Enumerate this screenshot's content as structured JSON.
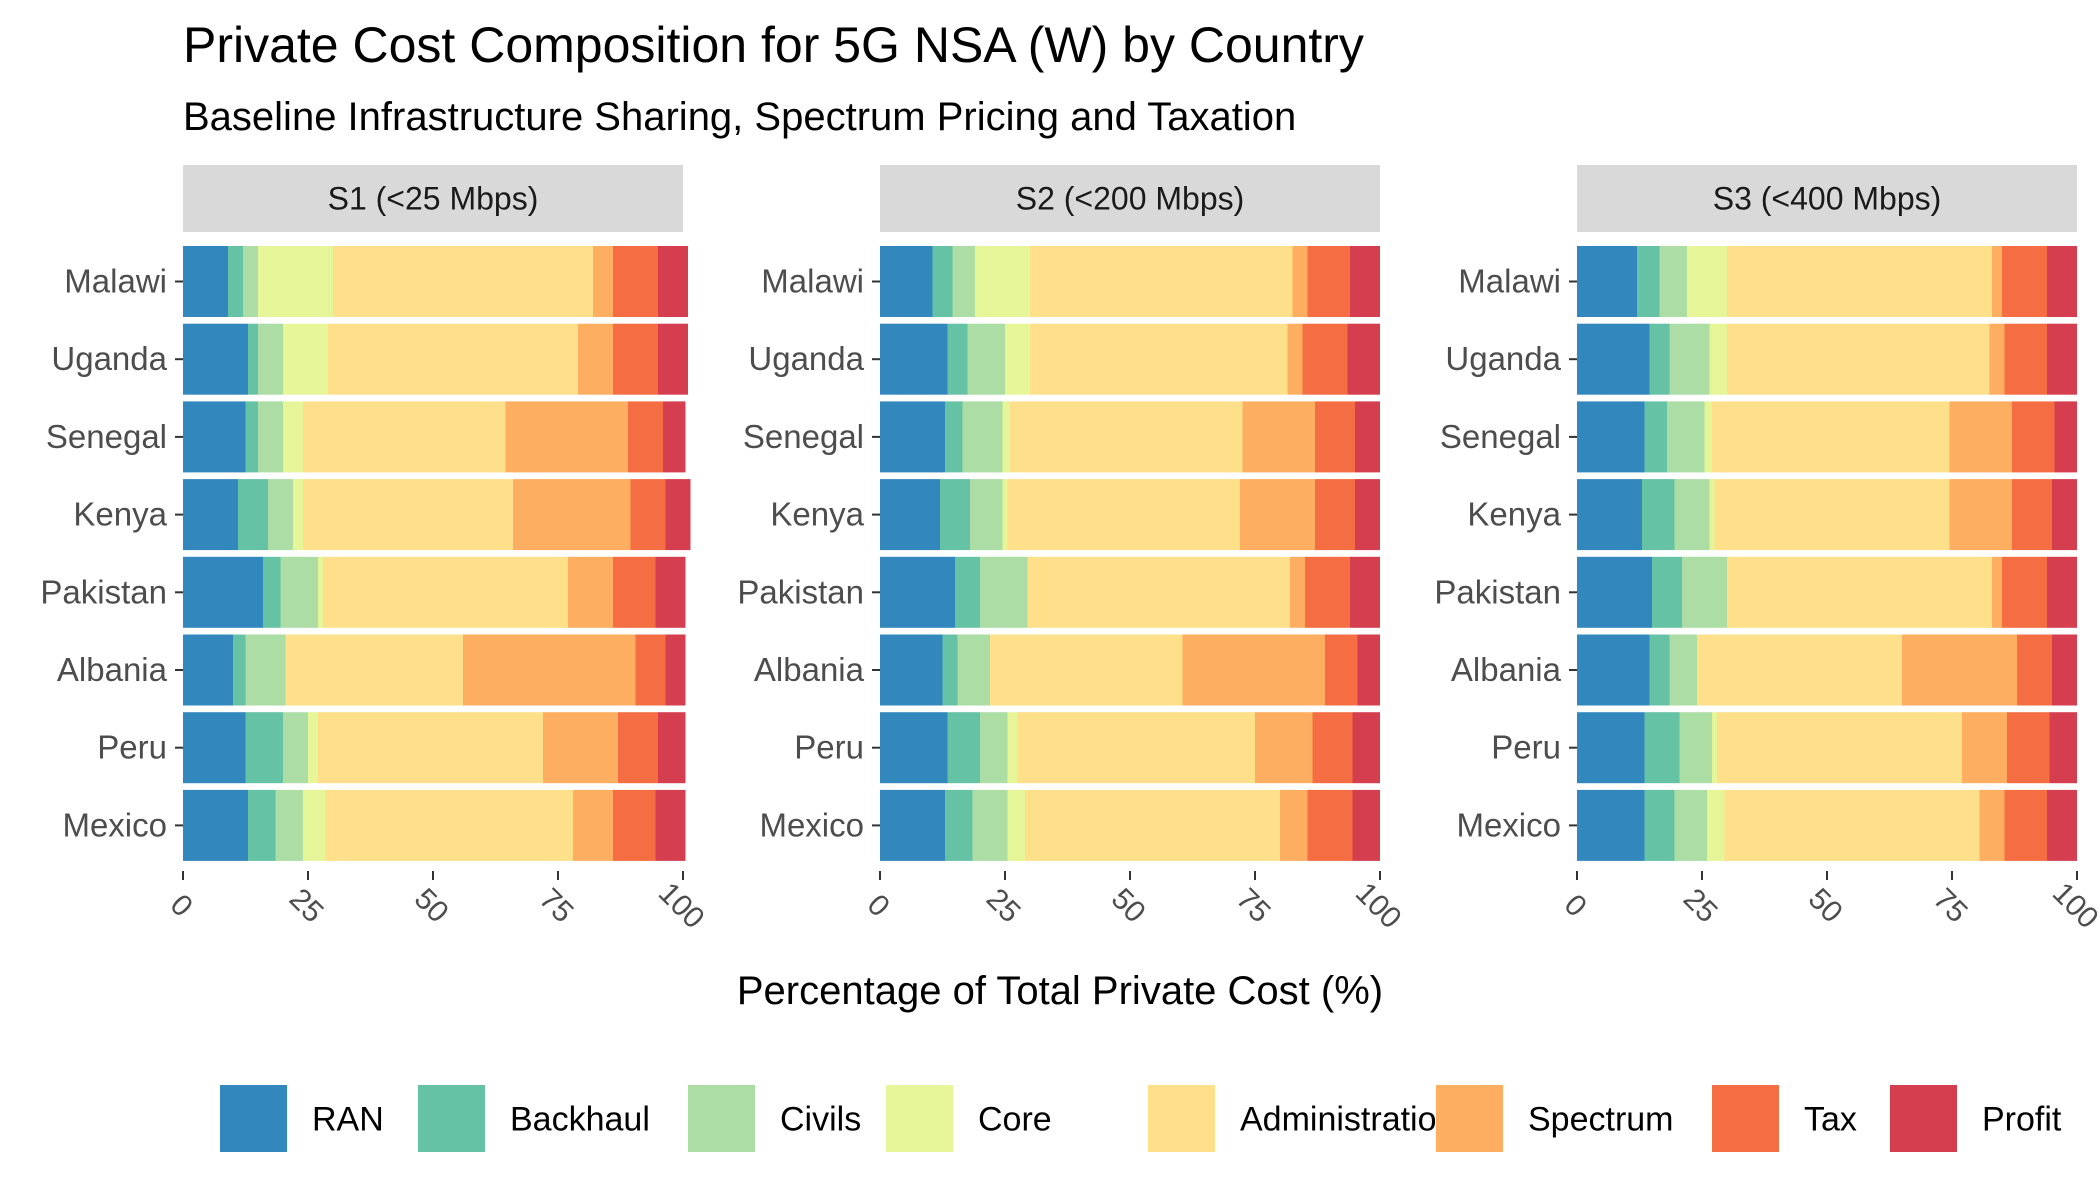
{
  "chart_data": {
    "type": "bar",
    "orientation": "horizontal",
    "stacked": true,
    "title": "Private Cost Composition for 5G NSA (W) by Country",
    "subtitle": "Baseline Infrastructure Sharing, Spectrum Pricing and Taxation",
    "xlabel": "Percentage of Total Private Cost (%)",
    "xlim": [
      0,
      100
    ],
    "xticks": [
      "0",
      "25",
      "50",
      "75",
      "100"
    ],
    "legend_position": "bottom",
    "categories": [
      "Malawi",
      "Uganda",
      "Senegal",
      "Kenya",
      "Pakistan",
      "Albania",
      "Peru",
      "Mexico"
    ],
    "components": [
      {
        "name": "RAN",
        "color": "#3288BD"
      },
      {
        "name": "Backhaul",
        "color": "#66C2A5"
      },
      {
        "name": "Civils",
        "color": "#ABDDA4"
      },
      {
        "name": "Core",
        "color": "#E6F598"
      },
      {
        "name": "Administration",
        "color": "#FEE08B"
      },
      {
        "name": "Spectrum",
        "color": "#FDAE61"
      },
      {
        "name": "Tax",
        "color": "#F46D43"
      },
      {
        "name": "Profit",
        "color": "#D53E4F"
      }
    ],
    "panels": [
      {
        "label": "S1 (<25 Mbps)",
        "rows": [
          {
            "country": "Malawi",
            "values": [
              9,
              3,
              3,
              15,
              52,
              4,
              9,
              6
            ]
          },
          {
            "country": "Uganda",
            "values": [
              13,
              2,
              5,
              9,
              50,
              7,
              9,
              6
            ]
          },
          {
            "country": "Senegal",
            "values": [
              12.5,
              2.5,
              5,
              4,
              40.5,
              24.5,
              7,
              4.5
            ]
          },
          {
            "country": "Kenya",
            "values": [
              11,
              6,
              5,
              2,
              42,
              23.5,
              7,
              5
            ]
          },
          {
            "country": "Pakistan",
            "values": [
              16,
              3.5,
              7.5,
              1,
              49,
              9,
              8.5,
              6
            ]
          },
          {
            "country": "Albania",
            "values": [
              10,
              2.5,
              8,
              0,
              35.5,
              34.5,
              6,
              4
            ]
          },
          {
            "country": "Peru",
            "values": [
              12.5,
              7.5,
              5,
              2,
              45,
              15,
              8,
              5.5
            ]
          },
          {
            "country": "Mexico",
            "values": [
              13,
              5.5,
              5.5,
              4.5,
              49.5,
              8,
              8.5,
              6
            ]
          }
        ]
      },
      {
        "label": "S2 (<200 Mbps)",
        "rows": [
          {
            "country": "Malawi",
            "values": [
              10.5,
              4,
              4.5,
              11,
              52.5,
              3,
              8.5,
              6
            ]
          },
          {
            "country": "Uganda",
            "values": [
              13.5,
              4,
              7.5,
              5,
              51.5,
              3,
              9,
              6.5
            ]
          },
          {
            "country": "Senegal",
            "values": [
              13,
              3.5,
              8,
              1.5,
              46.5,
              14.5,
              8,
              5
            ]
          },
          {
            "country": "Kenya",
            "values": [
              12,
              6,
              6.5,
              1,
              46.5,
              15,
              8,
              5
            ]
          },
          {
            "country": "Pakistan",
            "values": [
              15,
              5,
              9.5,
              0,
              52.5,
              3,
              9,
              6
            ]
          },
          {
            "country": "Albania",
            "values": [
              12.5,
              3,
              6.5,
              0,
              38.5,
              28.5,
              6.5,
              4.5
            ]
          },
          {
            "country": "Peru",
            "values": [
              13.5,
              6.5,
              5.5,
              2,
              47.5,
              11.5,
              8,
              5.5
            ]
          },
          {
            "country": "Mexico",
            "values": [
              13,
              5.5,
              7,
              3.5,
              51,
              5.5,
              9,
              5.5
            ]
          }
        ]
      },
      {
        "label": "S3 (<400 Mbps)",
        "rows": [
          {
            "country": "Malawi",
            "values": [
              12,
              4.5,
              5.5,
              8,
              53,
              2,
              9,
              6
            ]
          },
          {
            "country": "Uganda",
            "values": [
              14.5,
              4,
              8,
              3.5,
              52.5,
              3,
              8.5,
              6
            ]
          },
          {
            "country": "Senegal",
            "values": [
              13.5,
              4.5,
              7.5,
              1.5,
              47.5,
              12.5,
              8.5,
              4.5
            ]
          },
          {
            "country": "Kenya",
            "values": [
              13,
              6.5,
              7,
              1,
              47,
              12.5,
              8,
              5
            ]
          },
          {
            "country": "Pakistan",
            "values": [
              15,
              6,
              9,
              0,
              53,
              2,
              9,
              6
            ]
          },
          {
            "country": "Albania",
            "values": [
              14.5,
              4,
              5.5,
              0,
              41,
              23,
              7,
              5
            ]
          },
          {
            "country": "Peru",
            "values": [
              13.5,
              7,
              6.5,
              1,
              49,
              9,
              8.5,
              5.5
            ]
          },
          {
            "country": "Mexico",
            "values": [
              13.5,
              6,
              6.5,
              3.5,
              51,
              5,
              8.5,
              6
            ]
          }
        ]
      }
    ]
  }
}
